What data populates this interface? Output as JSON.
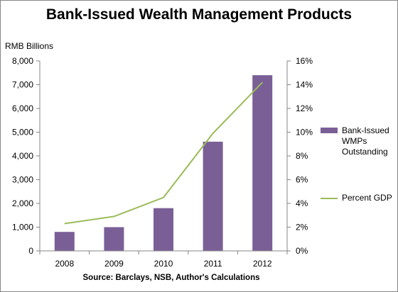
{
  "chart_data": {
    "type": "bar",
    "title": "Bank-Issued Wealth Management Products",
    "ylabel_left": "RMB Billions",
    "source": "Source: Barclays,  NSB, Author's Calculations",
    "categories": [
      "2008",
      "2009",
      "2010",
      "2011",
      "2012"
    ],
    "series": [
      {
        "name": "Bank-Issued WMPs Outstanding",
        "type": "bar",
        "axis": "left",
        "color": "#7a5f97",
        "values": [
          800,
          1000,
          1800,
          4600,
          7400
        ]
      },
      {
        "name": "Percent GDP",
        "type": "line",
        "axis": "right",
        "color": "#9bbb59",
        "values": [
          2.3,
          2.9,
          4.5,
          9.9,
          14.2
        ]
      }
    ],
    "ylim_left": [
      0,
      8000
    ],
    "yticks_left": [
      "0",
      "1,000",
      "2,000",
      "3,000",
      "4,000",
      "5,000",
      "6,000",
      "7,000",
      "8,000"
    ],
    "ylim_right": [
      0,
      16
    ],
    "yticks_right": [
      "0%",
      "2%",
      "4%",
      "6%",
      "8%",
      "10%",
      "12%",
      "14%",
      "16%"
    ],
    "grid": false,
    "legend_position": "right"
  }
}
